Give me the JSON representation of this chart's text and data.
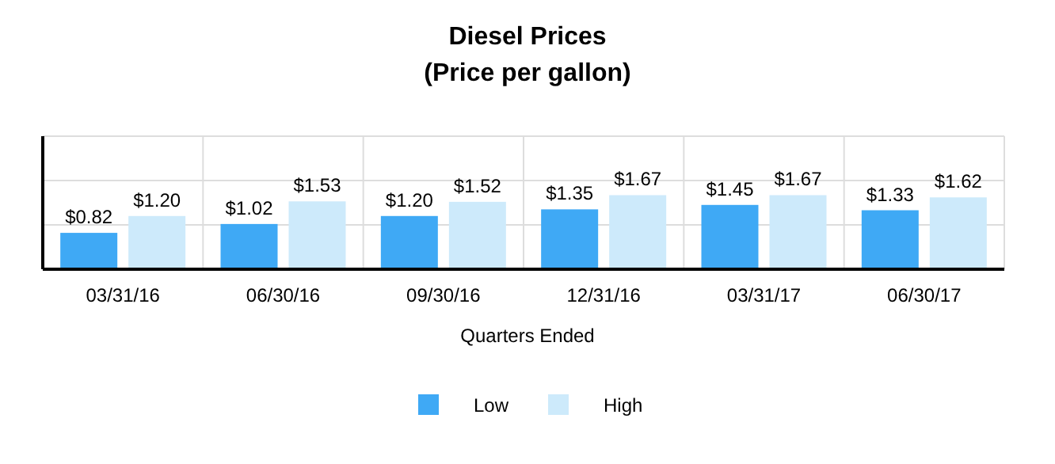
{
  "chart_data": {
    "type": "bar",
    "title": "Diesel Prices",
    "subtitle": "(Price per gallon)",
    "xlabel": "Quarters Ended",
    "categories": [
      "03/31/16",
      "06/30/16",
      "09/30/16",
      "12/31/16",
      "03/31/17",
      "06/30/17"
    ],
    "series": [
      {
        "name": "Low",
        "color": "#3fa9f5",
        "values": [
          0.82,
          1.02,
          1.2,
          1.35,
          1.45,
          1.33
        ],
        "value_labels": [
          "$0.82",
          "$1.02",
          "$1.20",
          "$1.35",
          "$1.45",
          "$1.33"
        ]
      },
      {
        "name": "High",
        "color": "#cdeafb",
        "values": [
          1.2,
          1.53,
          1.52,
          1.67,
          1.67,
          1.62
        ],
        "value_labels": [
          "$1.20",
          "$1.53",
          "$1.52",
          "$1.67",
          "$1.67",
          "$1.62"
        ]
      }
    ],
    "ylim": [
      0,
      3
    ],
    "yticks": [
      {
        "value": 0,
        "label": null
      },
      {
        "value": 1,
        "label": null
      },
      {
        "value": 2,
        "label": null
      },
      {
        "value": 3,
        "label": null
      }
    ],
    "tick_labels": "x",
    "grid": true,
    "legend": "bottom"
  }
}
